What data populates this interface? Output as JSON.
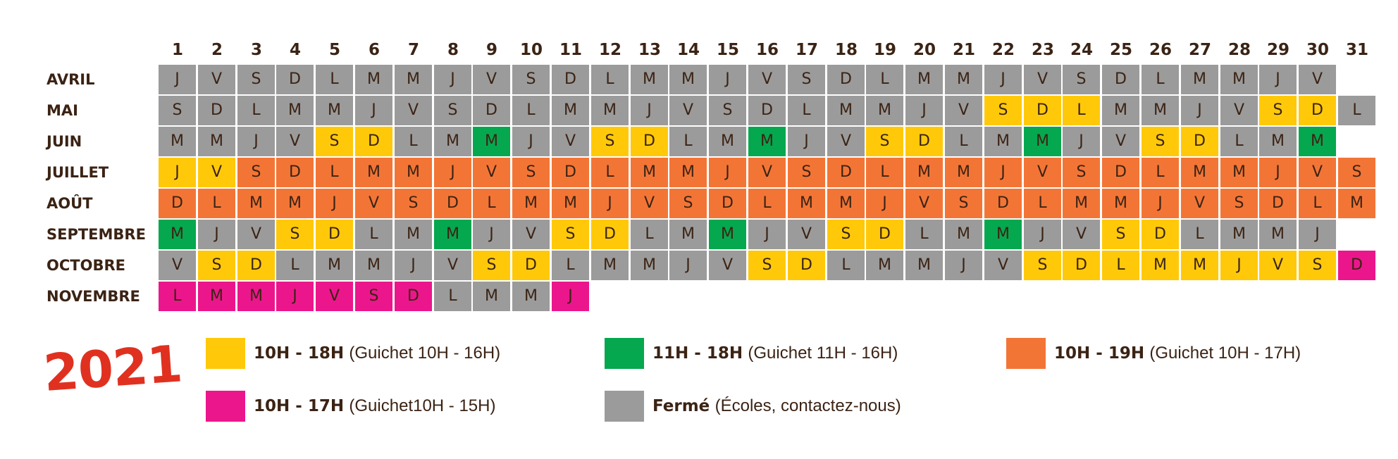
{
  "colors": {
    "gray": "#9b9b9b",
    "yellow": "#ffc90a",
    "green": "#05a84f",
    "orange": "#f37536",
    "magenta": "#ec168c",
    "text": "#3b2314",
    "year": "#e03120"
  },
  "day_numbers": [
    "1",
    "2",
    "3",
    "4",
    "5",
    "6",
    "7",
    "8",
    "9",
    "10",
    "11",
    "12",
    "13",
    "14",
    "15",
    "16",
    "17",
    "18",
    "19",
    "20",
    "21",
    "22",
    "23",
    "24",
    "25",
    "26",
    "27",
    "28",
    "29",
    "30",
    "31"
  ],
  "months": [
    {
      "name": "AVRIL",
      "days": [
        "J",
        "V",
        "S",
        "D",
        "L",
        "M",
        "M",
        "J",
        "V",
        "S",
        "D",
        "L",
        "M",
        "M",
        "J",
        "V",
        "S",
        "D",
        "L",
        "M",
        "M",
        "J",
        "V",
        "S",
        "D",
        "L",
        "M",
        "M",
        "J",
        "V"
      ],
      "colors": [
        "gray",
        "gray",
        "gray",
        "gray",
        "gray",
        "gray",
        "gray",
        "gray",
        "gray",
        "gray",
        "gray",
        "gray",
        "gray",
        "gray",
        "gray",
        "gray",
        "gray",
        "gray",
        "gray",
        "gray",
        "gray",
        "gray",
        "gray",
        "gray",
        "gray",
        "gray",
        "gray",
        "gray",
        "gray",
        "gray"
      ]
    },
    {
      "name": "MAI",
      "days": [
        "S",
        "D",
        "L",
        "M",
        "M",
        "J",
        "V",
        "S",
        "D",
        "L",
        "M",
        "M",
        "J",
        "V",
        "S",
        "D",
        "L",
        "M",
        "M",
        "J",
        "V",
        "S",
        "D",
        "L",
        "M",
        "M",
        "J",
        "V",
        "S",
        "D",
        "L"
      ],
      "colors": [
        "gray",
        "gray",
        "gray",
        "gray",
        "gray",
        "gray",
        "gray",
        "gray",
        "gray",
        "gray",
        "gray",
        "gray",
        "gray",
        "gray",
        "gray",
        "gray",
        "gray",
        "gray",
        "gray",
        "gray",
        "gray",
        "yellow",
        "yellow",
        "yellow",
        "gray",
        "gray",
        "gray",
        "gray",
        "yellow",
        "yellow",
        "gray"
      ]
    },
    {
      "name": "JUIN",
      "days": [
        "M",
        "M",
        "J",
        "V",
        "S",
        "D",
        "L",
        "M",
        "M",
        "J",
        "V",
        "S",
        "D",
        "L",
        "M",
        "M",
        "J",
        "V",
        "S",
        "D",
        "L",
        "M",
        "M",
        "J",
        "V",
        "S",
        "D",
        "L",
        "M",
        "M"
      ],
      "colors": [
        "gray",
        "gray",
        "gray",
        "gray",
        "yellow",
        "yellow",
        "gray",
        "gray",
        "green",
        "gray",
        "gray",
        "yellow",
        "yellow",
        "gray",
        "gray",
        "green",
        "gray",
        "gray",
        "yellow",
        "yellow",
        "gray",
        "gray",
        "green",
        "gray",
        "gray",
        "yellow",
        "yellow",
        "gray",
        "gray",
        "green"
      ]
    },
    {
      "name": "JUILLET",
      "days": [
        "J",
        "V",
        "S",
        "D",
        "L",
        "M",
        "M",
        "J",
        "V",
        "S",
        "D",
        "L",
        "M",
        "M",
        "J",
        "V",
        "S",
        "D",
        "L",
        "M",
        "M",
        "J",
        "V",
        "S",
        "D",
        "L",
        "M",
        "M",
        "J",
        "V",
        "S"
      ],
      "colors": [
        "yellow",
        "yellow",
        "orange",
        "orange",
        "orange",
        "orange",
        "orange",
        "orange",
        "orange",
        "orange",
        "orange",
        "orange",
        "orange",
        "orange",
        "orange",
        "orange",
        "orange",
        "orange",
        "orange",
        "orange",
        "orange",
        "orange",
        "orange",
        "orange",
        "orange",
        "orange",
        "orange",
        "orange",
        "orange",
        "orange",
        "orange"
      ]
    },
    {
      "name": "AOÛT",
      "days": [
        "D",
        "L",
        "M",
        "M",
        "J",
        "V",
        "S",
        "D",
        "L",
        "M",
        "M",
        "J",
        "V",
        "S",
        "D",
        "L",
        "M",
        "M",
        "J",
        "V",
        "S",
        "D",
        "L",
        "M",
        "M",
        "J",
        "V",
        "S",
        "D",
        "L",
        "M"
      ],
      "colors": [
        "orange",
        "orange",
        "orange",
        "orange",
        "orange",
        "orange",
        "orange",
        "orange",
        "orange",
        "orange",
        "orange",
        "orange",
        "orange",
        "orange",
        "orange",
        "orange",
        "orange",
        "orange",
        "orange",
        "orange",
        "orange",
        "orange",
        "orange",
        "orange",
        "orange",
        "orange",
        "orange",
        "orange",
        "orange",
        "orange",
        "orange"
      ]
    },
    {
      "name": "SEPTEMBRE",
      "days": [
        "M",
        "J",
        "V",
        "S",
        "D",
        "L",
        "M",
        "M",
        "J",
        "V",
        "S",
        "D",
        "L",
        "M",
        "M",
        "J",
        "V",
        "S",
        "D",
        "L",
        "M",
        "M",
        "J",
        "V",
        "S",
        "D",
        "L",
        "M",
        "M",
        "J"
      ],
      "colors": [
        "green",
        "gray",
        "gray",
        "yellow",
        "yellow",
        "gray",
        "gray",
        "green",
        "gray",
        "gray",
        "yellow",
        "yellow",
        "gray",
        "gray",
        "green",
        "gray",
        "gray",
        "yellow",
        "yellow",
        "gray",
        "gray",
        "green",
        "gray",
        "gray",
        "yellow",
        "yellow",
        "gray",
        "gray",
        "gray",
        "gray"
      ]
    },
    {
      "name": "OCTOBRE",
      "days": [
        "V",
        "S",
        "D",
        "L",
        "M",
        "M",
        "J",
        "V",
        "S",
        "D",
        "L",
        "M",
        "M",
        "J",
        "V",
        "S",
        "D",
        "L",
        "M",
        "M",
        "J",
        "V",
        "S",
        "D",
        "L",
        "M",
        "M",
        "J",
        "V",
        "S",
        "D"
      ],
      "colors": [
        "gray",
        "yellow",
        "yellow",
        "gray",
        "gray",
        "gray",
        "gray",
        "gray",
        "yellow",
        "yellow",
        "gray",
        "gray",
        "gray",
        "gray",
        "gray",
        "yellow",
        "yellow",
        "gray",
        "gray",
        "gray",
        "gray",
        "gray",
        "yellow",
        "yellow",
        "yellow",
        "yellow",
        "yellow",
        "yellow",
        "yellow",
        "yellow",
        "magenta"
      ]
    },
    {
      "name": "NOVEMBRE",
      "days": [
        "L",
        "M",
        "M",
        "J",
        "V",
        "S",
        "D",
        "L",
        "M",
        "M",
        "J"
      ],
      "colors": [
        "magenta",
        "magenta",
        "magenta",
        "magenta",
        "magenta",
        "magenta",
        "magenta",
        "gray",
        "gray",
        "gray",
        "magenta"
      ]
    }
  ],
  "year": "2021",
  "legend": [
    {
      "color": "yellow",
      "hours": "10H - 18H",
      "note": "(Guichet 10H - 16H)"
    },
    {
      "color": "green",
      "hours": "11H - 18H",
      "note": "(Guichet 11H - 16H)"
    },
    {
      "color": "orange",
      "hours": "10H - 19H",
      "note": "(Guichet 10H - 17H)"
    },
    {
      "color": "magenta",
      "hours": "10H - 17H",
      "note": "(Guichet10H - 15H)"
    },
    {
      "color": "gray",
      "hours": "Fermé",
      "note": "(Écoles, contactez-nous)"
    }
  ]
}
